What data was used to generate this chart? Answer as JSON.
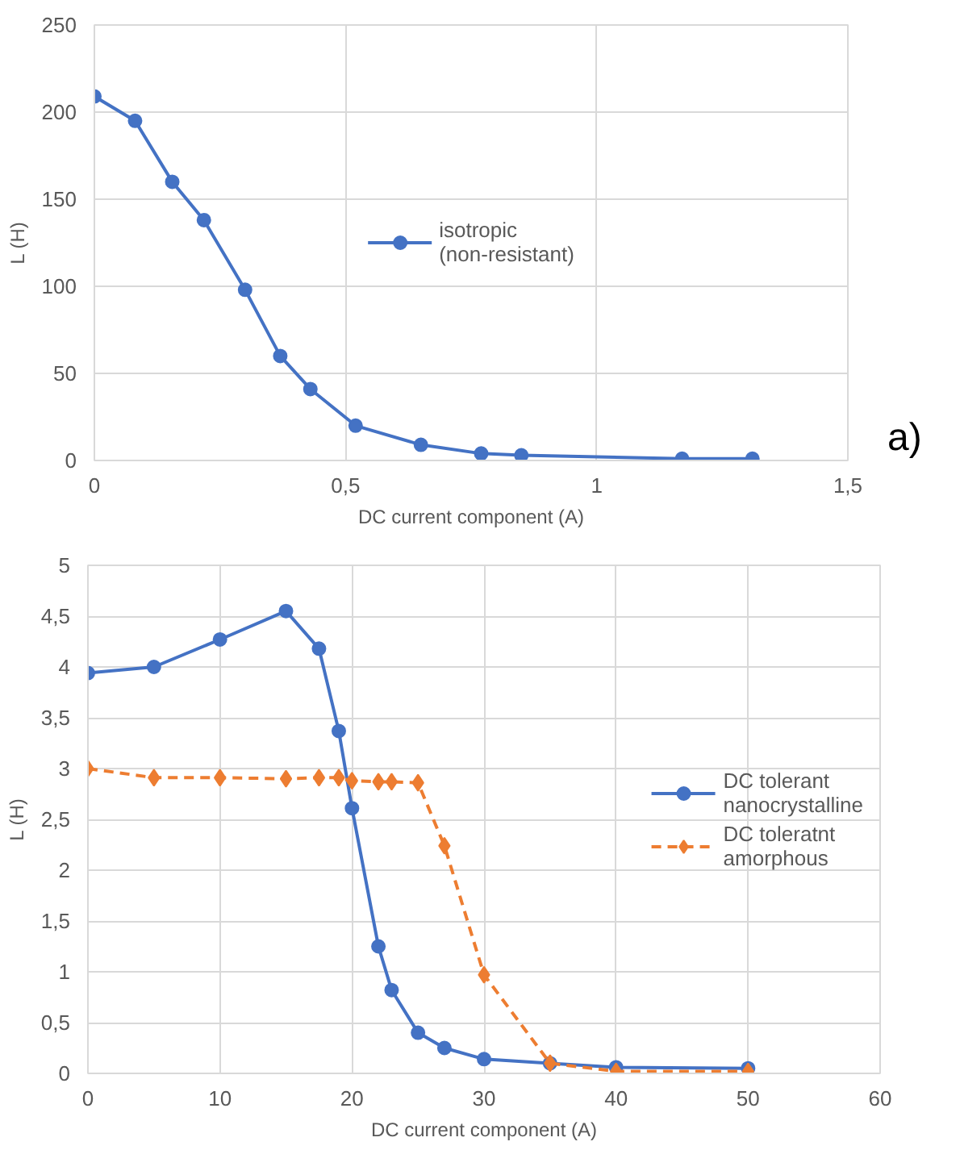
{
  "chart_data": [
    {
      "type": "line",
      "xlabel": "DC current component (A)",
      "ylabel": "L (H)",
      "annotations": [
        "a)"
      ],
      "xlim": [
        0,
        1.5
      ],
      "xticks": [
        0,
        {
          "value": 0.5,
          "label": "0,5"
        },
        1,
        {
          "value": 1.5,
          "label": "1,5"
        }
      ],
      "ylim": [
        0,
        250
      ],
      "yticks": [
        0,
        50,
        100,
        150,
        200,
        250
      ],
      "grid": true,
      "legend": "center",
      "marker": "circle",
      "line_style": "solid",
      "series": [
        {
          "name": "isotropic (non-resistant)",
          "color": "#4472c4",
          "x": [
            0,
            0.081,
            0.155,
            0.218,
            0.3,
            0.37,
            0.43,
            0.52,
            0.65,
            0.77,
            0.85,
            1.17,
            1.31
          ],
          "values": [
            209,
            195,
            160,
            138,
            98,
            60,
            41,
            20,
            9,
            4,
            3,
            1,
            1
          ]
        }
      ]
    },
    {
      "type": "line",
      "xlabel": "DC current component (A)",
      "ylabel": "L (H)",
      "xlim": [
        0,
        60
      ],
      "xticks": [
        0,
        10,
        20,
        30,
        40,
        50,
        60
      ],
      "ylim": [
        0,
        5
      ],
      "yticks": [
        0,
        {
          "value": 0.5,
          "label": "0,5"
        },
        1,
        {
          "value": 1.5,
          "label": "1,5"
        },
        2,
        {
          "value": 2.5,
          "label": "2,5"
        },
        3,
        {
          "value": 3.5,
          "label": "3,5"
        },
        4,
        {
          "value": 4.5,
          "label": "4,5"
        },
        5
      ],
      "grid": true,
      "legend": "right",
      "series": [
        {
          "name": "DC tolerant nanocrystalline",
          "color": "#4472c4",
          "marker": "circle",
          "line_style": "solid",
          "x": [
            0,
            5,
            10,
            15,
            17.5,
            19,
            20,
            22,
            23,
            25,
            27,
            30,
            35,
            40,
            50
          ],
          "values": [
            3.94,
            4.0,
            4.27,
            4.55,
            4.18,
            3.37,
            2.61,
            1.25,
            0.82,
            0.4,
            0.25,
            0.14,
            0.1,
            0.06,
            0.05
          ]
        },
        {
          "name": "DC toleratnt amorphous",
          "color": "#ed7d31",
          "marker": "diamond",
          "line_style": "dashed",
          "x": [
            0,
            5,
            10,
            15,
            17.5,
            19,
            20,
            22,
            23,
            25,
            27,
            30,
            35,
            40,
            50
          ],
          "values": [
            3.0,
            2.91,
            2.91,
            2.9,
            2.91,
            2.91,
            2.88,
            2.87,
            2.87,
            2.86,
            2.24,
            0.97,
            0.1,
            0.02,
            0.02
          ]
        }
      ]
    }
  ]
}
